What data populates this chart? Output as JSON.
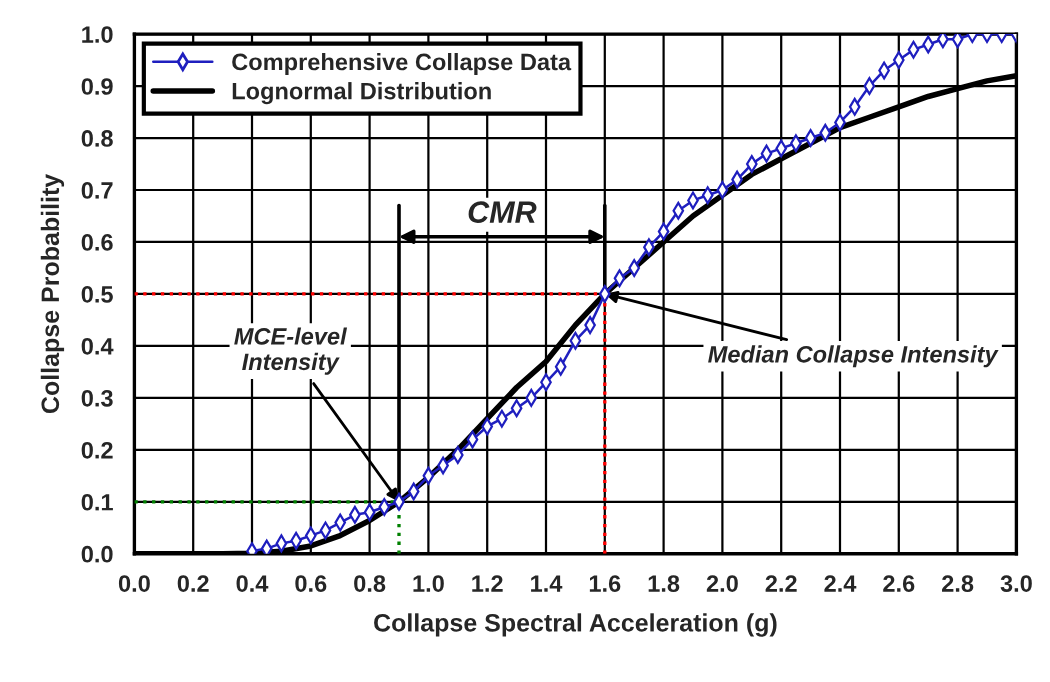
{
  "chart_data": {
    "type": "line",
    "xlabel": "Collapse Spectral Acceleration (g)",
    "ylabel": "Collapse Probability",
    "series": [
      {
        "name": "Comprehensive Collapse Data",
        "color": "#1f1fbf",
        "marker": "diamond",
        "x": [
          0.4,
          0.45,
          0.5,
          0.55,
          0.6,
          0.65,
          0.7,
          0.75,
          0.8,
          0.85,
          0.9,
          0.95,
          1.0,
          1.05,
          1.1,
          1.15,
          1.2,
          1.25,
          1.3,
          1.35,
          1.4,
          1.45,
          1.5,
          1.55,
          1.6,
          1.65,
          1.7,
          1.75,
          1.8,
          1.85,
          1.9,
          1.95,
          2.0,
          2.05,
          2.1,
          2.15,
          2.2,
          2.25,
          2.3,
          2.35,
          2.4,
          2.45,
          2.5,
          2.55,
          2.6,
          2.65,
          2.7,
          2.75,
          2.8,
          2.85,
          2.9,
          2.95,
          3.0
        ],
        "values": [
          0.005,
          0.01,
          0.02,
          0.025,
          0.035,
          0.045,
          0.06,
          0.075,
          0.08,
          0.09,
          0.1,
          0.12,
          0.15,
          0.17,
          0.19,
          0.22,
          0.245,
          0.26,
          0.28,
          0.3,
          0.33,
          0.36,
          0.41,
          0.44,
          0.5,
          0.53,
          0.55,
          0.59,
          0.62,
          0.66,
          0.68,
          0.69,
          0.7,
          0.72,
          0.75,
          0.77,
          0.78,
          0.79,
          0.8,
          0.81,
          0.83,
          0.86,
          0.9,
          0.93,
          0.95,
          0.97,
          0.98,
          0.99,
          0.99,
          1.0,
          1.0,
          1.0,
          1.0
        ]
      },
      {
        "name": "Lognormal Distribution",
        "color": "#000000",
        "marker": "none",
        "x": [
          0.0,
          0.1,
          0.2,
          0.3,
          0.4,
          0.5,
          0.6,
          0.7,
          0.8,
          0.9,
          1.0,
          1.1,
          1.2,
          1.3,
          1.4,
          1.5,
          1.6,
          1.7,
          1.8,
          1.9,
          2.0,
          2.1,
          2.2,
          2.3,
          2.4,
          2.5,
          2.6,
          2.7,
          2.8,
          2.9,
          3.0
        ],
        "values": [
          0,
          0,
          0,
          0,
          0.001,
          0.005,
          0.015,
          0.035,
          0.064,
          0.1,
          0.147,
          0.2,
          0.26,
          0.32,
          0.37,
          0.44,
          0.5,
          0.55,
          0.6,
          0.65,
          0.69,
          0.73,
          0.76,
          0.79,
          0.82,
          0.84,
          0.86,
          0.88,
          0.895,
          0.91,
          0.92
        ]
      }
    ],
    "xlim": [
      0.0,
      3.0
    ],
    "xticks": [
      {
        "value": 0,
        "label": "0.0"
      },
      0.2,
      0.4,
      0.6,
      0.8,
      {
        "value": 1,
        "label": "1.0"
      },
      1.2,
      1.4,
      1.6,
      1.8,
      {
        "value": 2,
        "label": "2.0"
      },
      2.2,
      2.4,
      2.6,
      2.8,
      {
        "value": 3,
        "label": "3.0"
      }
    ],
    "ylim": [
      0.0,
      1.0
    ],
    "yticks": [
      {
        "value": 0,
        "label": "0.0"
      },
      0.1,
      0.2,
      0.3,
      0.4,
      0.5,
      0.6,
      0.7,
      0.8,
      0.9,
      {
        "value": 1,
        "label": "1.0"
      }
    ],
    "grid": true,
    "legend": "top left",
    "ref_lines": [
      {
        "axis": "y",
        "value": 0.5,
        "color": "#ff0000",
        "line_style": "dotted"
      },
      {
        "axis": "x",
        "value": 1.6,
        "color": "#ff0000",
        "line_style": "dotted"
      },
      {
        "axis": "y",
        "value": 0.1,
        "color": "#008000",
        "line_style": "dotted"
      },
      {
        "axis": "x",
        "value": 0.9,
        "color": "#008000",
        "line_style": "dotted"
      }
    ],
    "annotations": [
      {
        "text": "MCE-level\nIntensity",
        "x": 0.9,
        "y": 0.1
      },
      {
        "text": "Median Collapse Intensity",
        "x": 1.6,
        "y": 0.5
      },
      "CMR"
    ]
  }
}
